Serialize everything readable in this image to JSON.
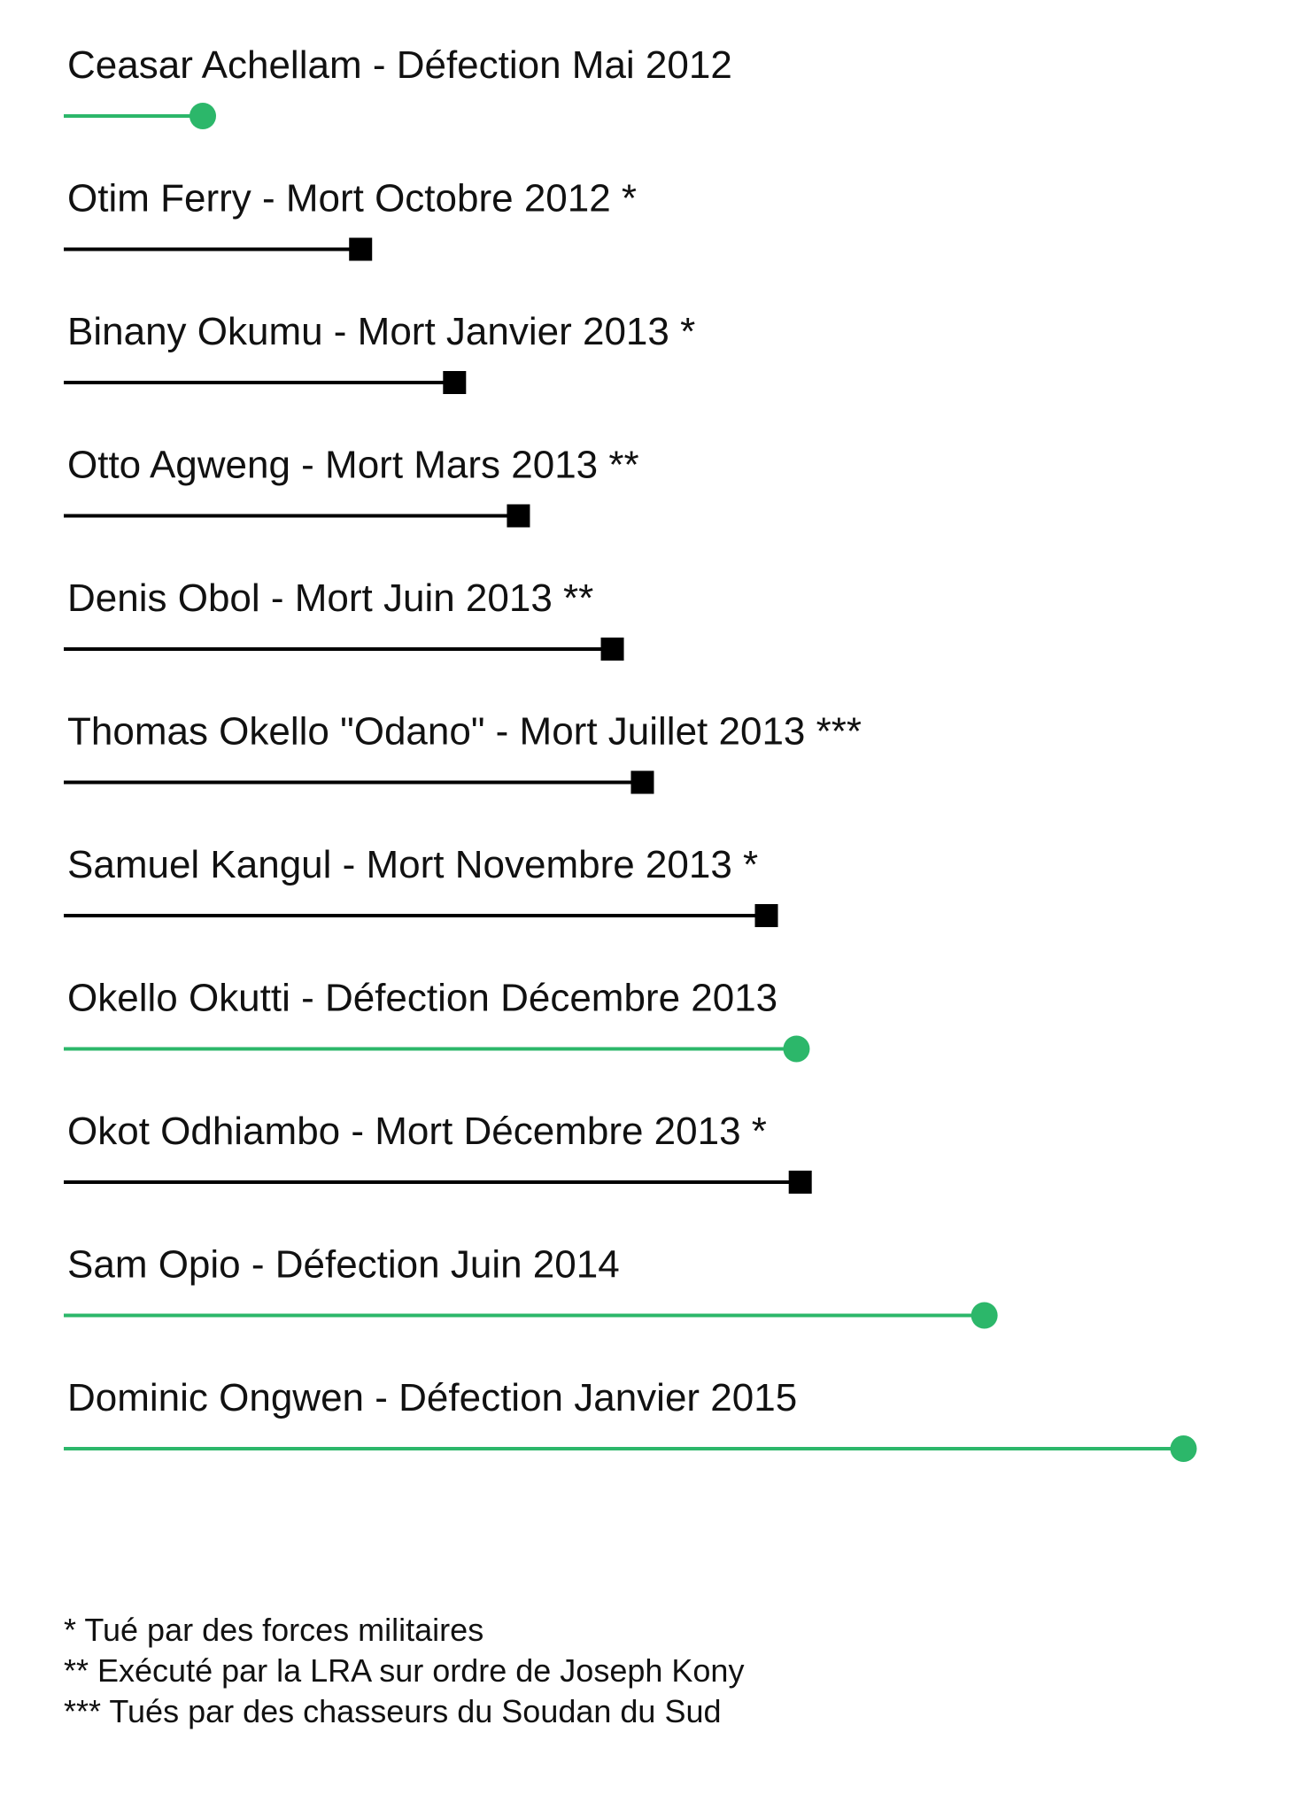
{
  "colors": {
    "defection": "#2cb76a",
    "death": "#000000"
  },
  "chart_data": {
    "type": "timeline",
    "xlim": [
      2012,
      2015
    ],
    "ticks": [
      "2012",
      "2013",
      "2014",
      "2015"
    ],
    "rows": [
      {
        "label": "Ceasar Achellam - Défection Mai 2012",
        "end": 2012.37,
        "outcome": "defection"
      },
      {
        "label": "Otim Ferry - Mort Octobre 2012 *",
        "end": 2012.79,
        "outcome": "death"
      },
      {
        "label": "Binany Okumu - Mort Janvier 2013 *",
        "end": 2013.04,
        "outcome": "death"
      },
      {
        "label": "Otto Agweng - Mort Mars 2013 **",
        "end": 2013.21,
        "outcome": "death"
      },
      {
        "label": "Denis Obol - Mort Juin 2013 **",
        "end": 2013.46,
        "outcome": "death"
      },
      {
        "label": "Thomas Okello \"Odano\" - Mort Juillet 2013 ***",
        "end": 2013.54,
        "outcome": "death"
      },
      {
        "label": "Samuel Kangul - Mort Novembre 2013  *",
        "end": 2013.87,
        "outcome": "death"
      },
      {
        "label": "Okello Okutti - Défection Décembre 2013",
        "end": 2013.95,
        "outcome": "defection"
      },
      {
        "label": "Okot Odhiambo - Mort Décembre 2013 *",
        "end": 2013.96,
        "outcome": "death"
      },
      {
        "label": "Sam Opio - Défection Juin 2014",
        "end": 2014.45,
        "outcome": "defection"
      },
      {
        "label": "Dominic Ongwen - Défection Janvier 2015",
        "end": 2014.98,
        "outcome": "defection"
      }
    ]
  },
  "footnotes": [
    "* Tué par des forces militaires",
    "** Exécuté par la LRA sur ordre de Joseph Kony",
    "*** Tués par des chasseurs du Soudan du Sud"
  ]
}
